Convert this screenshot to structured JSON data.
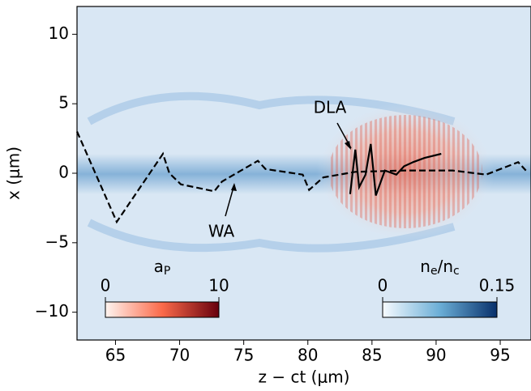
{
  "chart_data": {
    "type": "line",
    "xlabel": "z − ct (μm)",
    "ylabel": "x (μm)",
    "xlim": [
      62,
      97.4
    ],
    "ylim": [
      -12,
      12
    ],
    "xticks": [
      65,
      70,
      75,
      80,
      85,
      90,
      95
    ],
    "yticks": [
      {
        "value": -10,
        "label": "−10"
      },
      {
        "value": -5,
        "label": "−5"
      },
      0,
      5,
      10
    ],
    "series": [
      {
        "name": "WA",
        "color": "#000000",
        "dash": true,
        "x": [
          62,
          65.1,
          68.7,
          69.2,
          70.1,
          72.7,
          73.3,
          76.1,
          76.7,
          79.6,
          80.1,
          81.2,
          83.7,
          87.5,
          91.3,
          93.9,
          96.4,
          97.0
        ],
        "values": [
          3.0,
          -3.5,
          1.4,
          0.0,
          -0.8,
          -1.3,
          -0.6,
          0.9,
          0.3,
          -0.1,
          -1.2,
          -0.3,
          0.1,
          0.2,
          0.2,
          -0.1,
          0.8,
          0.2
        ]
      },
      {
        "name": "DLA",
        "color": "#000000",
        "dash": false,
        "x": [
          83.3,
          83.7,
          84.0,
          84.5,
          84.9,
          85.3,
          86.0,
          86.9,
          87.5,
          88.2,
          89.1,
          90.4
        ],
        "values": [
          -1.5,
          1.7,
          -1.0,
          -0.1,
          2.1,
          -1.6,
          0.2,
          -0.1,
          0.5,
          0.8,
          1.1,
          1.4
        ]
      }
    ],
    "colorbars": [
      {
        "label": [
          "a",
          "P"
        ],
        "range": [
          0,
          10
        ],
        "ticks": [
          0,
          10
        ],
        "colors": [
          "#fff5f0",
          "#fb6a4a",
          "#67000d"
        ]
      },
      {
        "label": [
          "n",
          "e",
          "/n",
          "c"
        ],
        "range": [
          0,
          0.15
        ],
        "ticks": [
          0,
          0.15
        ],
        "colors": [
          "#f7fbff",
          "#6baed6",
          "#08306b"
        ]
      }
    ]
  }
}
